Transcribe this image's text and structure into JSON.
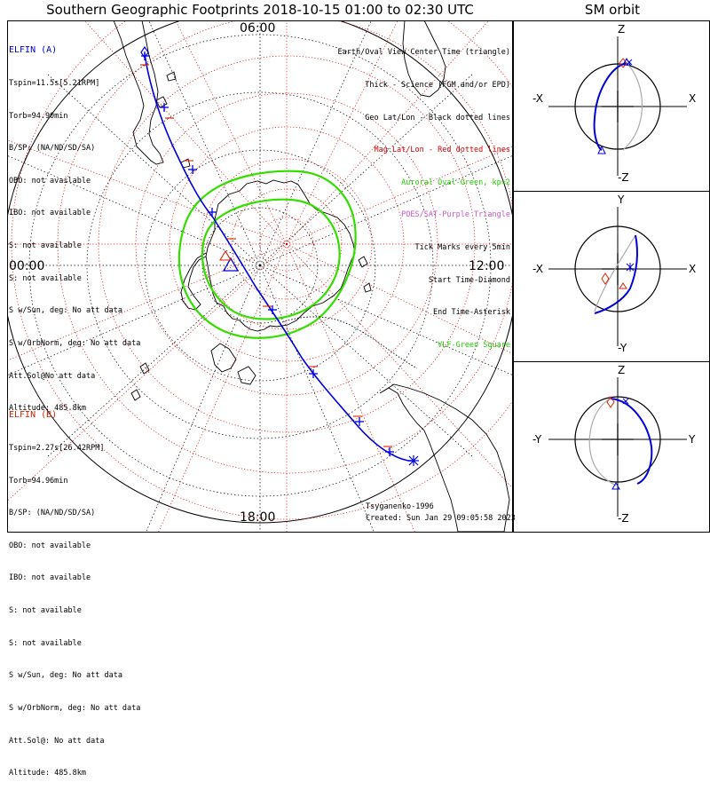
{
  "header": {
    "title": "Southern Geographic Footprints 2018-10-15 01:00 to 02:30 UTC",
    "sm_title": "SM orbit"
  },
  "time_labels": {
    "top": "06:00",
    "left": "00:00",
    "right": "12:00",
    "bottom": "18:00"
  },
  "elfin_a": {
    "name": "ELFIN (A)",
    "color": "#0000cc",
    "lines": [
      "Tspin=11.5s[5.21RPM]",
      "Torb=94.90min",
      "B/SP: (NA/ND/SD/SA)",
      "OBO: not available",
      "IBO: not available",
      "S: not available",
      "S: not available",
      "S w/Sun, deg: No att data",
      "S w/OrbNorm, deg: No att data",
      "Att.Sol@No att data",
      "Altitude: 485.8km"
    ]
  },
  "elfin_b": {
    "name": "ELFIN (B)",
    "color": "#cc2200",
    "lines": [
      "Tspin=2.27s[26.42RPM]",
      "Torb=94.96min",
      "B/SP: (NA/ND/SD/SA)",
      "OBO: not available",
      "IBO: not available",
      "S: not available",
      "S: not available",
      "S w/Sun, deg: No att data",
      "S w/OrbNorm, deg: No att data",
      "Att.Sol@: No att data",
      "Altitude: 485.8km"
    ]
  },
  "legend": [
    {
      "text": "Earth/Oval View Center Time (triangle)",
      "color": "#000000"
    },
    {
      "text": "Thick - Science (FGM and/or EPD)",
      "color": "#000000"
    },
    {
      "text": "Geo Lat/Lon - Black dotted lines",
      "color": "#000000"
    },
    {
      "text": "Mag Lat/Lon - Red dotted lines",
      "color": "#dd0000"
    },
    {
      "text": "Auroral Oval-Green, kp=2",
      "color": "#22cc00"
    },
    {
      "text": "POES/SAT-Purple Triangle",
      "color": "#cc55cc"
    },
    {
      "text": "Tick Marks every 5min",
      "color": "#000000"
    },
    {
      "text": "Start Time-Diamond",
      "color": "#000000"
    },
    {
      "text": "End Time-Asterisk",
      "color": "#000000"
    },
    {
      "text": "VLF-Green Square",
      "color": "#22cc00"
    }
  ],
  "footer": {
    "model": "Tsyganenko-1996",
    "created": "Created: Sun Jan 29 09:05:58 2023"
  },
  "panels": [
    {
      "top": "Z",
      "bottom": "-Z",
      "left": "-X",
      "right": "X"
    },
    {
      "top": "Y",
      "bottom": "-Y",
      "left": "-X",
      "right": "X"
    },
    {
      "top": "Z",
      "bottom": "-Z",
      "left": "-Y",
      "right": "Y"
    }
  ],
  "colors": {
    "track": "#0000dd",
    "oval": "#33dd00",
    "mag_grid": "#dd0000",
    "geo_grid": "#000000"
  }
}
